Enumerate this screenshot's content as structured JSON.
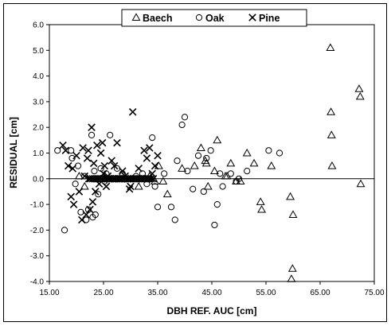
{
  "chart_data": {
    "type": "scatter",
    "xlabel": "DBH REF. AUC [cm]",
    "ylabel": "RESIDUAL [cm]",
    "xlim": [
      15,
      75
    ],
    "ylim": [
      -4,
      6
    ],
    "xticks": [
      "15.00",
      "25.00",
      "35.00",
      "45.00",
      "55.00",
      "65.00",
      "75.00"
    ],
    "yticks": [
      "6.0",
      "5.0",
      "4.0",
      "3.0",
      "2.0",
      "1.0",
      "0.0",
      "-1.0",
      "-2.0",
      "-3.0",
      "-4.0"
    ],
    "grid": false,
    "legend_position": "top-center",
    "series": [
      {
        "name": "Baech",
        "marker": "triangle",
        "points": [
          [
            20.5,
            0.1
          ],
          [
            21.5,
            -0.3
          ],
          [
            31.5,
            -0.3
          ],
          [
            33.5,
            0.1
          ],
          [
            34.5,
            -0.1
          ],
          [
            35.2,
            0.5
          ],
          [
            36.0,
            -0.1
          ],
          [
            36.8,
            -0.6
          ],
          [
            39.5,
            0.4
          ],
          [
            41.8,
            0.5
          ],
          [
            43.0,
            1.2
          ],
          [
            43.8,
            0.7
          ],
          [
            44.0,
            0.6
          ],
          [
            44.3,
            -0.3
          ],
          [
            45.5,
            0.3
          ],
          [
            46.0,
            1.5
          ],
          [
            47.5,
            0.1
          ],
          [
            47.8,
            0.1
          ],
          [
            48.5,
            0.6
          ],
          [
            49.5,
            -0.1
          ],
          [
            50.3,
            -0.1
          ],
          [
            51.5,
            1.0
          ],
          [
            52.8,
            0.6
          ],
          [
            54.0,
            -0.9
          ],
          [
            54.2,
            -1.2
          ],
          [
            56.0,
            0.5
          ],
          [
            59.5,
            -0.7
          ],
          [
            59.7,
            -3.9
          ],
          [
            59.9,
            -3.5
          ],
          [
            60.0,
            -1.4
          ],
          [
            66.9,
            5.1
          ],
          [
            67.0,
            2.6
          ],
          [
            67.1,
            1.7
          ],
          [
            67.2,
            0.5
          ],
          [
            72.2,
            3.5
          ],
          [
            72.4,
            3.2
          ],
          [
            72.5,
            -0.2
          ]
        ]
      },
      {
        "name": "Oak",
        "marker": "circle",
        "points": [
          [
            16.5,
            1.1
          ],
          [
            17.8,
            -2.0
          ],
          [
            19.0,
            1.1
          ],
          [
            19.2,
            0.8
          ],
          [
            19.8,
            -0.2
          ],
          [
            20.3,
            0.5
          ],
          [
            20.8,
            -1.3
          ],
          [
            21.5,
            0.1
          ],
          [
            21.8,
            -1.6
          ],
          [
            22.2,
            -1.2
          ],
          [
            22.8,
            1.7
          ],
          [
            23.0,
            -1.5
          ],
          [
            23.3,
            0.3
          ],
          [
            23.5,
            -1.4
          ],
          [
            24.0,
            -0.6
          ],
          [
            24.5,
            0.4
          ],
          [
            25.2,
            -0.1
          ],
          [
            25.5,
            0.2
          ],
          [
            26.2,
            1.7
          ],
          [
            27.5,
            0.4
          ],
          [
            28.5,
            0.2
          ],
          [
            31.0,
            0.1
          ],
          [
            32.2,
            0.2
          ],
          [
            33.0,
            -0.2
          ],
          [
            34.0,
            1.6
          ],
          [
            34.5,
            -0.3
          ],
          [
            35.0,
            -1.1
          ],
          [
            36.2,
            0.2
          ],
          [
            37.5,
            -1.1
          ],
          [
            38.2,
            -1.6
          ],
          [
            38.6,
            0.7
          ],
          [
            39.5,
            2.1
          ],
          [
            40.0,
            2.4
          ],
          [
            40.5,
            0.3
          ],
          [
            41.5,
            -0.4
          ],
          [
            42.5,
            0.9
          ],
          [
            43.5,
            -0.5
          ],
          [
            44.0,
            0.8
          ],
          [
            44.8,
            1.1
          ],
          [
            45.5,
            -1.8
          ],
          [
            46.0,
            -1.0
          ],
          [
            46.5,
            0.2
          ],
          [
            47.0,
            -0.3
          ],
          [
            48.5,
            0.2
          ],
          [
            49.5,
            -0.1
          ],
          [
            50.0,
            0.0
          ],
          [
            51.5,
            0.3
          ],
          [
            55.5,
            1.1
          ],
          [
            57.5,
            1.0
          ]
        ]
      },
      {
        "name": "Pine",
        "marker": "x",
        "points": [
          [
            17.5,
            1.3
          ],
          [
            18.0,
            1.1
          ],
          [
            18.5,
            0.5
          ],
          [
            19.0,
            -0.7
          ],
          [
            19.3,
            0.4
          ],
          [
            19.5,
            -1.0
          ],
          [
            20.0,
            0.9
          ],
          [
            20.5,
            -0.5
          ],
          [
            21.0,
            -1.6
          ],
          [
            21.2,
            1.2
          ],
          [
            21.5,
            0.1
          ],
          [
            22.0,
            0.8
          ],
          [
            22.2,
            1.1
          ],
          [
            22.5,
            -1.2
          ],
          [
            22.8,
            2.0
          ],
          [
            23.0,
            -0.9
          ],
          [
            23.2,
            0.6
          ],
          [
            23.5,
            -0.5
          ],
          [
            23.8,
            1.3
          ],
          [
            24.2,
            -0.2
          ],
          [
            24.5,
            1.0
          ],
          [
            24.8,
            1.4
          ],
          [
            25.0,
            0.2
          ],
          [
            25.2,
            0.5
          ],
          [
            25.5,
            -0.3
          ],
          [
            26.0,
            0.0
          ],
          [
            26.5,
            0.7
          ],
          [
            27.0,
            0.5
          ],
          [
            27.5,
            1.4
          ],
          [
            28.0,
            0.0
          ],
          [
            28.5,
            0.3
          ],
          [
            29.0,
            0.1
          ],
          [
            29.5,
            0.0
          ],
          [
            30.0,
            -0.3
          ],
          [
            30.4,
            2.6
          ],
          [
            31.0,
            0.0
          ],
          [
            31.5,
            0.4
          ],
          [
            32.5,
            1.1
          ],
          [
            33.0,
            0.8
          ],
          [
            33.5,
            1.2
          ],
          [
            34.0,
            0.2
          ],
          [
            34.5,
            0.5
          ],
          [
            35.0,
            0.9
          ],
          [
            21.8,
            -1.4
          ],
          [
            22.3,
            0.0
          ],
          [
            25.8,
            0.1
          ],
          [
            29.8,
            -0.4
          ]
        ]
      },
      {
        "name": "",
        "marker": "x",
        "points": [
          [
            22.6,
            0.0
          ],
          [
            23.0,
            0.0
          ],
          [
            23.4,
            0.0
          ],
          [
            23.8,
            0.0
          ],
          [
            24.2,
            0.0
          ],
          [
            24.6,
            0.0
          ],
          [
            25.0,
            0.0
          ],
          [
            25.4,
            0.0
          ],
          [
            25.8,
            0.0
          ],
          [
            26.2,
            0.0
          ],
          [
            26.6,
            0.0
          ],
          [
            27.0,
            0.0
          ],
          [
            27.4,
            0.0
          ],
          [
            27.8,
            0.0
          ],
          [
            28.2,
            0.0
          ],
          [
            28.6,
            0.0
          ],
          [
            29.0,
            0.0
          ],
          [
            29.4,
            0.0
          ],
          [
            29.8,
            0.0
          ],
          [
            30.2,
            0.0
          ],
          [
            30.6,
            0.0
          ],
          [
            31.0,
            0.0
          ],
          [
            31.4,
            0.0
          ],
          [
            31.8,
            0.0
          ],
          [
            32.2,
            0.0
          ],
          [
            32.6,
            0.0
          ],
          [
            33.0,
            0.0
          ],
          [
            33.4,
            0.0
          ],
          [
            33.8,
            0.0
          ],
          [
            34.2,
            0.0
          ]
        ]
      }
    ]
  }
}
